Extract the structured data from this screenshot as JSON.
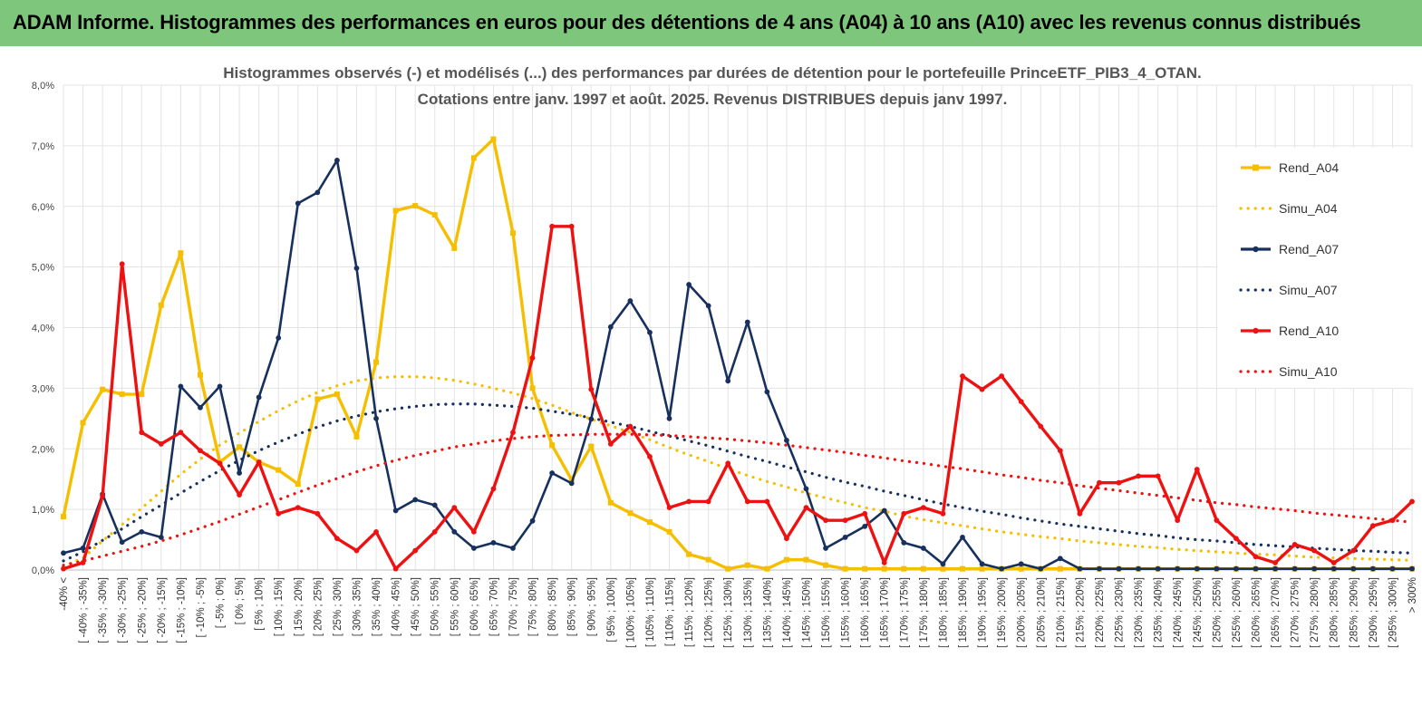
{
  "header": {
    "title": "ADAM Informe. Histogrammes des performances en euros pour des détentions de 4 ans (A04) à 10 ans (A10) avec les revenus connus distribués"
  },
  "colors": {
    "header_bg": "#7dc67b",
    "accent_yellow": "#f5bf00",
    "A04": "#f5bf00",
    "A07": "#17305e",
    "A10": "#ee1111"
  },
  "chart_data": {
    "type": "line",
    "title": [
      "Histogrammes observés (-) et modélisés (...) des performances par durées de détention pour le portefeuille PrinceETF_PIB3_4_OTAN.",
      "Cotations entre janv. 1997 et août. 2025. Revenus DISTRIBUES depuis janv 1997."
    ],
    "xlabel": "",
    "ylabel": "",
    "ylim": [
      0,
      8
    ],
    "yticks": [
      "0,0%",
      "1,0%",
      "2,0%",
      "3,0%",
      "4,0%",
      "5,0%",
      "6,0%",
      "7,0%",
      "8,0%"
    ],
    "grid": "vertical and horizontal",
    "legend_position": "right",
    "categories": [
      "-40% <",
      "[ -40% ; -35%]",
      "[ -35% ; -30%]",
      "[ -30% ; -25%]",
      "[ -25% ; -20%]",
      "[ -20% ; -15%]",
      "[ -15% ; -10%]",
      "[ -10% ; -5%]",
      "[ -5% ; 0%]",
      "[ 0% ; 5%]",
      "[ 5% ; 10%]",
      "[ 10% ; 15%]",
      "[ 15% ; 20%]",
      "[ 20% ; 25%]",
      "[ 25% ; 30%]",
      "[ 30% ; 35%]",
      "[ 35% ; 40%]",
      "[ 40% ; 45%]",
      "[ 45% ; 50%]",
      "[ 50% ; 55%]",
      "[ 55% ; 60%]",
      "[ 60% ; 65%]",
      "[ 65% ; 70%]",
      "[ 70% ; 75%]",
      "[ 75% ; 80%]",
      "[ 80% ; 85%]",
      "[ 85% ; 90%]",
      "[ 90% ; 95%]",
      "[ 95% ; 100%]",
      "[ 100% ; 105%]",
      "[ 105% ; 110%]",
      "[ 110% ; 115%]",
      "[ 115% ; 120%]",
      "[ 120% ; 125%]",
      "[ 125% ; 130%]",
      "[ 130% ; 135%]",
      "[ 135% ; 140%]",
      "[ 140% ; 145%]",
      "[ 145% ; 150%]",
      "[ 150% ; 155%]",
      "[ 155% ; 160%]",
      "[ 160% ; 165%]",
      "[ 165% ; 170%]",
      "[ 170% ; 175%]",
      "[ 175% ; 180%]",
      "[ 180% ; 185%]",
      "[ 185% ; 190%]",
      "[ 190% ; 195%]",
      "[ 195% ; 200%]",
      "[ 200% ; 205%]",
      "[ 205% ; 210%]",
      "[ 210% ; 215%]",
      "[ 215% ; 220%]",
      "[ 220% ; 225%]",
      "[ 225% ; 230%]",
      "[ 230% ; 235%]",
      "[ 235% ; 240%]",
      "[ 240% ; 245%]",
      "[ 245% ; 250%]",
      "[ 250% ; 255%]",
      "[ 255% ; 260%]",
      "[ 260% ; 265%]",
      "[ 265% ; 270%]",
      "[ 270% ; 275%]",
      "[ 275% ; 280%]",
      "[ 280% ; 285%]",
      "[ 285% ; 290%]",
      "[ 290% ; 295%]",
      "[ 295% ; 300%]",
      "> 300%"
    ],
    "series": [
      {
        "name": "Rend_A04",
        "style": "solid",
        "color": "#f5bf00",
        "values": [
          0.88,
          2.43,
          2.98,
          2.9,
          2.9,
          4.37,
          5.23,
          3.22,
          1.78,
          2.03,
          1.78,
          1.65,
          1.42,
          2.82,
          2.9,
          2.2,
          3.43,
          5.93,
          6.01,
          5.86,
          5.31,
          6.8,
          7.11,
          5.56,
          3.0,
          2.06,
          1.49,
          2.04,
          1.11,
          0.94,
          0.79,
          0.63,
          0.26,
          0.17,
          0.02,
          0.08,
          0.02,
          0.17,
          0.17,
          0.08,
          0.02,
          0.02,
          0.02,
          0.02,
          0.02,
          0.02,
          0.02,
          0.02,
          0.02,
          0.02,
          0.02,
          0.02,
          0.02,
          0.02,
          0.02,
          0.02,
          0.02,
          0.02,
          0.02,
          0.02,
          0.02,
          0.02,
          0.02,
          0.02,
          0.02,
          0.02,
          0.02,
          0.02,
          0.02,
          0.02
        ]
      },
      {
        "name": "Simu_A04",
        "style": "dotted",
        "color": "#f5bf00",
        "values": [
          0.06,
          0.2,
          0.48,
          0.75,
          1.02,
          1.3,
          1.58,
          1.83,
          2.06,
          2.26,
          2.45,
          2.63,
          2.79,
          2.93,
          3.04,
          3.12,
          3.17,
          3.19,
          3.19,
          3.17,
          3.13,
          3.07,
          3.0,
          2.92,
          2.83,
          2.72,
          2.6,
          2.49,
          2.38,
          2.27,
          2.15,
          2.02,
          1.9,
          1.79,
          1.67,
          1.56,
          1.46,
          1.37,
          1.27,
          1.19,
          1.11,
          1.03,
          0.97,
          0.89,
          0.83,
          0.78,
          0.73,
          0.68,
          0.63,
          0.59,
          0.55,
          0.52,
          0.48,
          0.45,
          0.42,
          0.39,
          0.37,
          0.34,
          0.32,
          0.3,
          0.28,
          0.26,
          0.25,
          0.23,
          0.21,
          0.2,
          0.19,
          0.18,
          0.17,
          0.16
        ]
      },
      {
        "name": "Rend_A07",
        "style": "solid",
        "color": "#17305e",
        "values": [
          0.28,
          0.36,
          1.25,
          0.46,
          0.63,
          0.54,
          3.03,
          2.68,
          3.03,
          1.6,
          2.85,
          3.83,
          6.05,
          6.23,
          6.76,
          4.98,
          2.5,
          0.98,
          1.16,
          1.07,
          0.63,
          0.36,
          0.45,
          0.36,
          0.81,
          1.6,
          1.43,
          2.49,
          4.01,
          4.44,
          3.92,
          2.5,
          4.71,
          4.36,
          3.12,
          4.09,
          2.94,
          2.14,
          1.34,
          0.36,
          0.54,
          0.72,
          0.98,
          0.45,
          0.36,
          0.1,
          0.54,
          0.1,
          0.02,
          0.1,
          0.02,
          0.19,
          0.02,
          0.02,
          0.02,
          0.02,
          0.02,
          0.02,
          0.02,
          0.02,
          0.02,
          0.02,
          0.02,
          0.02,
          0.02,
          0.02,
          0.02,
          0.02,
          0.02,
          0.02
        ]
      },
      {
        "name": "Simu_A07",
        "style": "dotted",
        "color": "#17305e",
        "values": [
          0.15,
          0.3,
          0.49,
          0.68,
          0.88,
          1.07,
          1.27,
          1.46,
          1.64,
          1.81,
          1.97,
          2.11,
          2.24,
          2.36,
          2.46,
          2.54,
          2.61,
          2.66,
          2.7,
          2.73,
          2.74,
          2.74,
          2.72,
          2.7,
          2.67,
          2.62,
          2.57,
          2.51,
          2.44,
          2.37,
          2.29,
          2.21,
          2.13,
          2.05,
          1.96,
          1.87,
          1.79,
          1.7,
          1.62,
          1.53,
          1.45,
          1.38,
          1.3,
          1.23,
          1.16,
          1.09,
          1.03,
          0.97,
          0.92,
          0.86,
          0.81,
          0.76,
          0.72,
          0.68,
          0.64,
          0.6,
          0.57,
          0.53,
          0.5,
          0.48,
          0.45,
          0.42,
          0.4,
          0.38,
          0.36,
          0.34,
          0.32,
          0.31,
          0.29,
          0.28
        ]
      },
      {
        "name": "Rend_A10",
        "style": "solid",
        "color": "#ee1111",
        "values": [
          0.02,
          0.12,
          1.22,
          5.05,
          2.27,
          2.08,
          2.27,
          1.97,
          1.76,
          1.24,
          1.78,
          0.93,
          1.03,
          0.93,
          0.52,
          0.32,
          0.63,
          0.02,
          0.32,
          0.63,
          1.03,
          0.63,
          1.34,
          2.27,
          3.5,
          5.67,
          5.67,
          2.98,
          2.08,
          2.37,
          1.87,
          1.03,
          1.13,
          1.13,
          1.76,
          1.13,
          1.13,
          0.52,
          1.03,
          0.82,
          0.82,
          0.93,
          0.12,
          0.93,
          1.03,
          0.93,
          3.2,
          2.98,
          3.2,
          2.78,
          2.37,
          1.97,
          0.93,
          1.44,
          1.44,
          1.55,
          1.55,
          0.82,
          1.66,
          0.82,
          0.52,
          0.22,
          0.12,
          0.42,
          0.32,
          0.12,
          0.32,
          0.73,
          0.82,
          1.13
        ]
      },
      {
        "name": "Simu_A10",
        "style": "dotted",
        "color": "#ee1111",
        "values": [
          0.08,
          0.15,
          0.23,
          0.31,
          0.39,
          0.48,
          0.58,
          0.69,
          0.8,
          0.92,
          1.04,
          1.16,
          1.28,
          1.4,
          1.51,
          1.62,
          1.72,
          1.81,
          1.89,
          1.96,
          2.03,
          2.08,
          2.13,
          2.17,
          2.2,
          2.22,
          2.23,
          2.24,
          2.24,
          2.24,
          2.23,
          2.22,
          2.2,
          2.18,
          2.16,
          2.13,
          2.1,
          2.06,
          2.02,
          1.98,
          1.94,
          1.89,
          1.85,
          1.8,
          1.76,
          1.71,
          1.67,
          1.62,
          1.57,
          1.53,
          1.48,
          1.44,
          1.39,
          1.35,
          1.31,
          1.27,
          1.23,
          1.19,
          1.15,
          1.11,
          1.08,
          1.04,
          1.01,
          0.98,
          0.94,
          0.91,
          0.88,
          0.85,
          0.82,
          0.79
        ]
      }
    ]
  }
}
